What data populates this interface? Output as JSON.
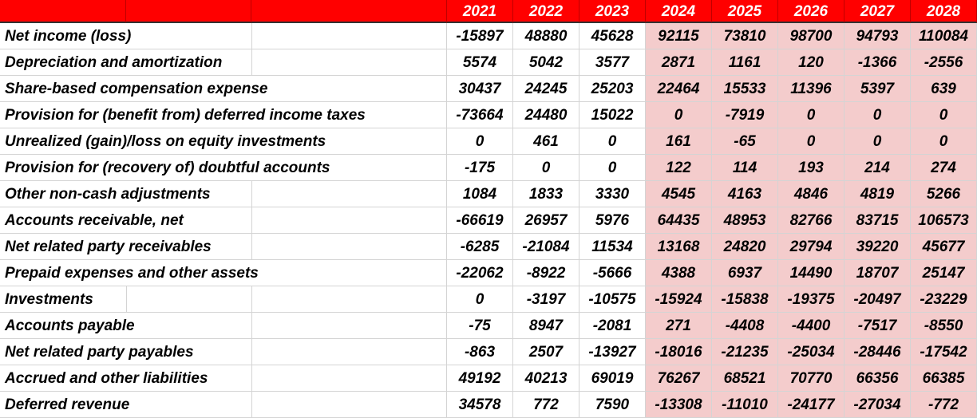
{
  "header": {
    "years": [
      2021,
      2022,
      2023,
      2024,
      2025,
      2026,
      2027,
      2028
    ]
  },
  "rows": [
    {
      "label": "Net income (loss)",
      "values": [
        -15897,
        48880,
        45628,
        92115,
        73810,
        98700,
        94793,
        110084
      ]
    },
    {
      "label": "Depreciation and amortization",
      "values": [
        5574,
        5042,
        3577,
        2871,
        1161,
        120,
        -1366,
        -2556
      ]
    },
    {
      "label": "Share-based compensation expense",
      "values": [
        30437,
        24245,
        25203,
        22464,
        15533,
        11396,
        5397,
        639
      ]
    },
    {
      "label": "Provision for (benefit from) deferred income taxes",
      "values": [
        -73664,
        24480,
        15022,
        0,
        -7919,
        0,
        0,
        0
      ]
    },
    {
      "label": "Unrealized (gain)/loss on equity investments",
      "values": [
        0,
        461,
        0,
        161,
        -65,
        0,
        0,
        0
      ]
    },
    {
      "label": "Provision for (recovery of) doubtful accounts",
      "values": [
        -175,
        0,
        0,
        122,
        114,
        193,
        214,
        274
      ]
    },
    {
      "label": "Other non-cash adjustments",
      "values": [
        1084,
        1833,
        3330,
        4545,
        4163,
        4846,
        4819,
        5266
      ]
    },
    {
      "label": "Accounts receivable, net",
      "values": [
        -66619,
        26957,
        5976,
        64435,
        48953,
        82766,
        83715,
        106573
      ]
    },
    {
      "label": "Net related party receivables",
      "values": [
        -6285,
        -21084,
        11534,
        13168,
        24820,
        29794,
        39220,
        45677
      ]
    },
    {
      "label": "Prepaid expenses and other assets",
      "values": [
        -22062,
        -8922,
        -5666,
        4388,
        6937,
        14490,
        18707,
        25147
      ]
    },
    {
      "label": "Investments",
      "values": [
        0,
        -3197,
        -10575,
        -15924,
        -15838,
        -19375,
        -20497,
        -23229
      ]
    },
    {
      "label": "Accounts payable",
      "values": [
        -75,
        8947,
        -2081,
        271,
        -4408,
        -4400,
        -7517,
        -8550
      ]
    },
    {
      "label": "Net related party payables",
      "values": [
        -863,
        2507,
        -13927,
        -18016,
        -21235,
        -25034,
        -28446,
        -17542
      ]
    },
    {
      "label": "Accrued and other liabilities",
      "values": [
        49192,
        40213,
        69019,
        76267,
        68521,
        70770,
        66356,
        66385
      ]
    },
    {
      "label": "Deferred revenue",
      "values": [
        34578,
        772,
        7590,
        -13308,
        -11010,
        -24177,
        -27034,
        -772
      ]
    }
  ]
}
